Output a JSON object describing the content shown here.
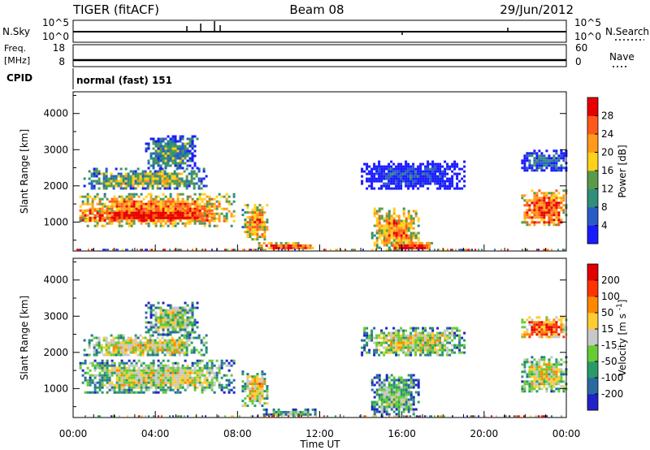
{
  "header": {
    "title": "TIGER (fitACF)",
    "beam": "Beam 08",
    "date": "29/Jun/2012"
  },
  "panels": {
    "nsky_label": "N.Sky",
    "nsearch_label": "N.Search",
    "freq_label_line1": "Freq.",
    "freq_label_line2": "[MHz]",
    "nave_label": "Nave",
    "cpid_label": "CPID",
    "cpid_value": "normal (fast) 151",
    "noise_ticks_left": [
      "10^5",
      "10^0"
    ],
    "noise_ticks_right": [
      "10^5",
      "10^0"
    ],
    "freq_ticks": [
      "18",
      "8"
    ],
    "nave_ticks": [
      "60",
      "0"
    ]
  },
  "chart_data": [
    {
      "type": "heatmap",
      "panel": "power",
      "ylabel": "Slant Range [km]",
      "yticks": [
        "1000",
        "2000",
        "3000",
        "4000"
      ],
      "ylim": [
        200,
        4600
      ],
      "xlim_hours": [
        0,
        24
      ],
      "colorbar": {
        "label": "Power [dB]",
        "ticks": [
          "4",
          "8",
          "12",
          "16",
          "20",
          "24",
          "28"
        ],
        "colors": [
          "#1a1aff",
          "#2a5cc8",
          "#2f8f7a",
          "#5a9a4a",
          "#ffd21a",
          "#ff9a1a",
          "#ff5a1a",
          "#e80000"
        ]
      },
      "regions": [
        {
          "t0": 0.3,
          "t1": 7.8,
          "r0": 900,
          "r1": 1800,
          "level": 0.75
        },
        {
          "t0": 0.3,
          "t1": 6.8,
          "r0": 1050,
          "r1": 1350,
          "level": 1.0
        },
        {
          "t0": 0.5,
          "t1": 6.5,
          "r0": 1900,
          "r1": 2500,
          "level": 0.45
        },
        {
          "t0": 3.5,
          "t1": 6.0,
          "r0": 2500,
          "r1": 3400,
          "level": 0.35
        },
        {
          "t0": 8.2,
          "t1": 9.5,
          "r0": 500,
          "r1": 1500,
          "level": 0.7
        },
        {
          "t0": 9.0,
          "t1": 11.8,
          "r0": 250,
          "r1": 450,
          "level": 0.85
        },
        {
          "t0": 14.5,
          "t1": 16.8,
          "r0": 250,
          "r1": 1400,
          "level": 0.7
        },
        {
          "t0": 15.5,
          "t1": 17.5,
          "r0": 250,
          "r1": 450,
          "level": 1.0
        },
        {
          "t0": 14.0,
          "t1": 19.0,
          "r0": 1900,
          "r1": 2700,
          "level": 0.05
        },
        {
          "t0": 21.8,
          "t1": 24.0,
          "r0": 900,
          "r1": 1900,
          "level": 0.85
        },
        {
          "t0": 21.8,
          "t1": 24.0,
          "r0": 2400,
          "r1": 3000,
          "level": 0.2
        }
      ]
    },
    {
      "type": "heatmap",
      "panel": "velocity",
      "ylabel": "Slant Range [km]",
      "yticks": [
        "1000",
        "2000",
        "3000",
        "4000"
      ],
      "ylim": [
        200,
        4600
      ],
      "xlim_hours": [
        0,
        24
      ],
      "xlabel": "Time UT",
      "xticks": [
        "00:00",
        "04:00",
        "08:00",
        "12:00",
        "16:00",
        "20:00",
        "00:00"
      ],
      "colorbar": {
        "label": "Velocity [m s^-1]",
        "ticks": [
          "200",
          "100",
          "50",
          "15",
          "-15",
          "-50",
          "-100",
          "-200"
        ],
        "colors": [
          "#2222c8",
          "#2a6aa0",
          "#2a9a6a",
          "#66cc33",
          "#c8c8c8",
          "#ffcc33",
          "#ff8800",
          "#ff3300",
          "#e00000"
        ]
      },
      "regions": [
        {
          "t0": 0.3,
          "t1": 7.8,
          "r0": 900,
          "r1": 1800,
          "level": 0.5
        },
        {
          "t0": 0.5,
          "t1": 6.5,
          "r0": 1900,
          "r1": 2500,
          "level": 0.55
        },
        {
          "t0": 3.5,
          "t1": 6.0,
          "r0": 2500,
          "r1": 3400,
          "level": 0.45
        },
        {
          "t0": 8.2,
          "t1": 9.5,
          "r0": 500,
          "r1": 1500,
          "level": 0.6
        },
        {
          "t0": 9.0,
          "t1": 11.8,
          "r0": 250,
          "r1": 450,
          "level": 0.35
        },
        {
          "t0": 14.5,
          "t1": 16.8,
          "r0": 250,
          "r1": 1400,
          "level": 0.4
        },
        {
          "t0": 14.0,
          "t1": 19.0,
          "r0": 1900,
          "r1": 2700,
          "level": 0.5
        },
        {
          "t0": 21.8,
          "t1": 24.0,
          "r0": 900,
          "r1": 1900,
          "level": 0.55
        },
        {
          "t0": 21.8,
          "t1": 24.0,
          "r0": 2400,
          "r1": 3000,
          "level": 0.8
        }
      ]
    }
  ]
}
